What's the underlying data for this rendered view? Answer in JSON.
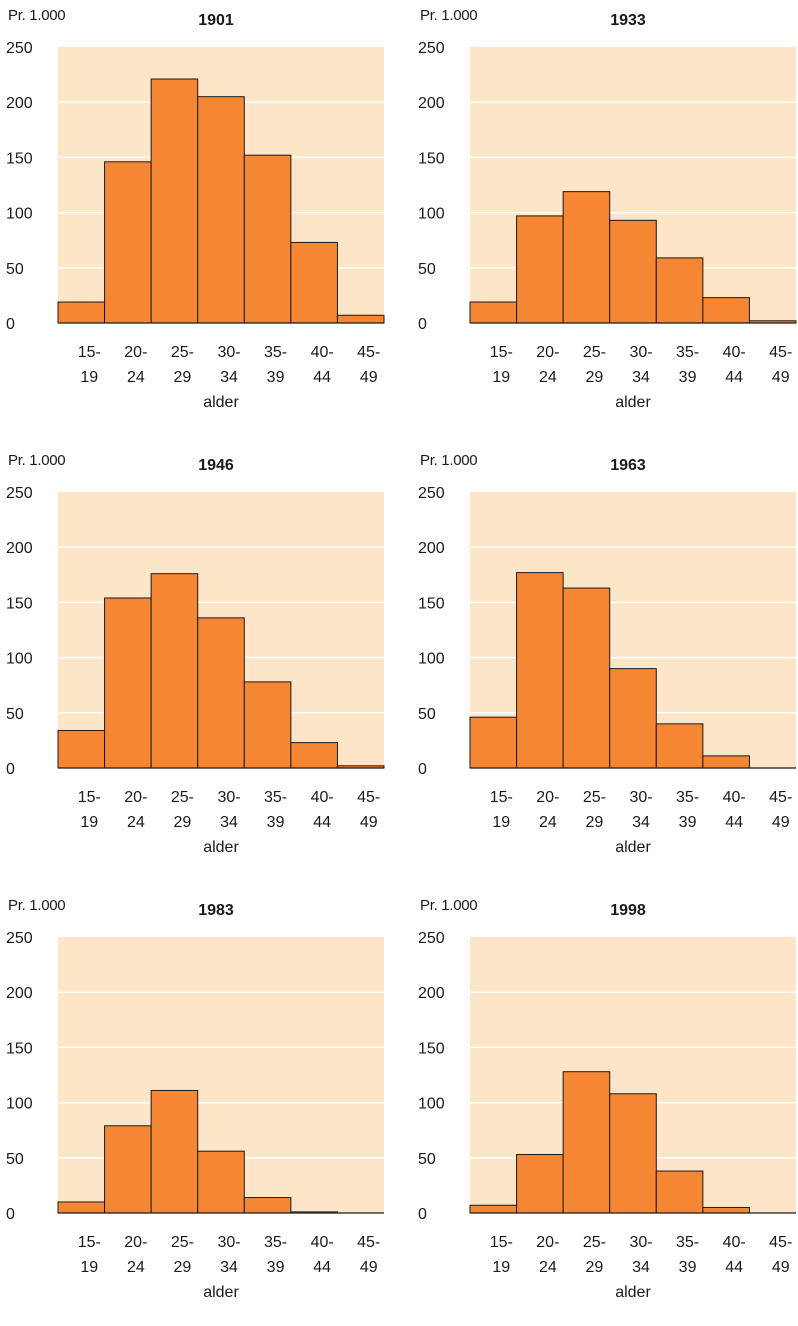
{
  "chart_data": [
    {
      "type": "bar",
      "title": "1901",
      "unit_label": "Pr. 1.000",
      "xlabel": "alder",
      "categories": [
        [
          "15-",
          "19"
        ],
        [
          "20-",
          "24"
        ],
        [
          "25-",
          "29"
        ],
        [
          "30-",
          "34"
        ],
        [
          "35-",
          "39"
        ],
        [
          "40-",
          "44"
        ],
        [
          "45-",
          "49"
        ]
      ],
      "values": [
        19,
        146,
        221,
        205,
        152,
        73,
        7
      ],
      "ylim": [
        0,
        250
      ],
      "yticks": [
        0,
        50,
        100,
        150,
        200,
        250
      ],
      "grid": true,
      "colors": {
        "bar": "#f58633",
        "plot_bg": "#fde5c8",
        "grid": "#ffffff",
        "border": "#1a1a1a"
      }
    },
    {
      "type": "bar",
      "title": "1933",
      "unit_label": "Pr. 1.000",
      "xlabel": "alder",
      "categories": [
        [
          "15-",
          "19"
        ],
        [
          "20-",
          "24"
        ],
        [
          "25-",
          "29"
        ],
        [
          "30-",
          "34"
        ],
        [
          "35-",
          "39"
        ],
        [
          "40-",
          "44"
        ],
        [
          "45-",
          "49"
        ]
      ],
      "values": [
        19,
        97,
        119,
        93,
        59,
        23,
        2
      ],
      "ylim": [
        0,
        250
      ],
      "yticks": [
        0,
        50,
        100,
        150,
        200,
        250
      ],
      "grid": true,
      "colors": {
        "bar": "#f58633",
        "plot_bg": "#fde5c8",
        "grid": "#ffffff",
        "border": "#1a1a1a"
      }
    },
    {
      "type": "bar",
      "title": "1946",
      "unit_label": "Pr. 1.000",
      "xlabel": "alder",
      "categories": [
        [
          "15-",
          "19"
        ],
        [
          "20-",
          "24"
        ],
        [
          "25-",
          "29"
        ],
        [
          "30-",
          "34"
        ],
        [
          "35-",
          "39"
        ],
        [
          "40-",
          "44"
        ],
        [
          "45-",
          "49"
        ]
      ],
      "values": [
        34,
        154,
        176,
        136,
        78,
        23,
        2
      ],
      "ylim": [
        0,
        250
      ],
      "yticks": [
        0,
        50,
        100,
        150,
        200,
        250
      ],
      "grid": true,
      "colors": {
        "bar": "#f58633",
        "plot_bg": "#fde5c8",
        "grid": "#ffffff",
        "border": "#1a1a1a"
      }
    },
    {
      "type": "bar",
      "title": "1963",
      "unit_label": "Pr. 1.000",
      "xlabel": "alder",
      "categories": [
        [
          "15-",
          "19"
        ],
        [
          "20-",
          "24"
        ],
        [
          "25-",
          "29"
        ],
        [
          "30-",
          "34"
        ],
        [
          "35-",
          "39"
        ],
        [
          "40-",
          "44"
        ],
        [
          "45-",
          "49"
        ]
      ],
      "values": [
        46,
        177,
        163,
        90,
        40,
        11,
        0
      ],
      "ylim": [
        0,
        250
      ],
      "yticks": [
        0,
        50,
        100,
        150,
        200,
        250
      ],
      "grid": true,
      "colors": {
        "bar": "#f58633",
        "plot_bg": "#fde5c8",
        "grid": "#ffffff",
        "border": "#1a1a1a"
      }
    },
    {
      "type": "bar",
      "title": "1983",
      "unit_label": "Pr. 1.000",
      "xlabel": "alder",
      "categories": [
        [
          "15-",
          "19"
        ],
        [
          "20-",
          "24"
        ],
        [
          "25-",
          "29"
        ],
        [
          "30-",
          "34"
        ],
        [
          "35-",
          "39"
        ],
        [
          "40-",
          "44"
        ],
        [
          "45-",
          "49"
        ]
      ],
      "values": [
        10,
        79,
        111,
        56,
        14,
        1,
        0
      ],
      "ylim": [
        0,
        250
      ],
      "yticks": [
        0,
        50,
        100,
        150,
        200,
        250
      ],
      "grid": true,
      "colors": {
        "bar": "#f58633",
        "plot_bg": "#fde5c8",
        "grid": "#ffffff",
        "border": "#1a1a1a"
      }
    },
    {
      "type": "bar",
      "title": "1998",
      "unit_label": "Pr. 1.000",
      "xlabel": "alder",
      "categories": [
        [
          "15-",
          "19"
        ],
        [
          "20-",
          "24"
        ],
        [
          "25-",
          "29"
        ],
        [
          "30-",
          "34"
        ],
        [
          "35-",
          "39"
        ],
        [
          "40-",
          "44"
        ],
        [
          "45-",
          "49"
        ]
      ],
      "values": [
        7,
        53,
        128,
        108,
        38,
        5,
        0
      ],
      "ylim": [
        0,
        250
      ],
      "yticks": [
        0,
        50,
        100,
        150,
        200,
        250
      ],
      "grid": true,
      "colors": {
        "bar": "#f58633",
        "plot_bg": "#fde5c8",
        "grid": "#ffffff",
        "border": "#1a1a1a"
      }
    }
  ]
}
